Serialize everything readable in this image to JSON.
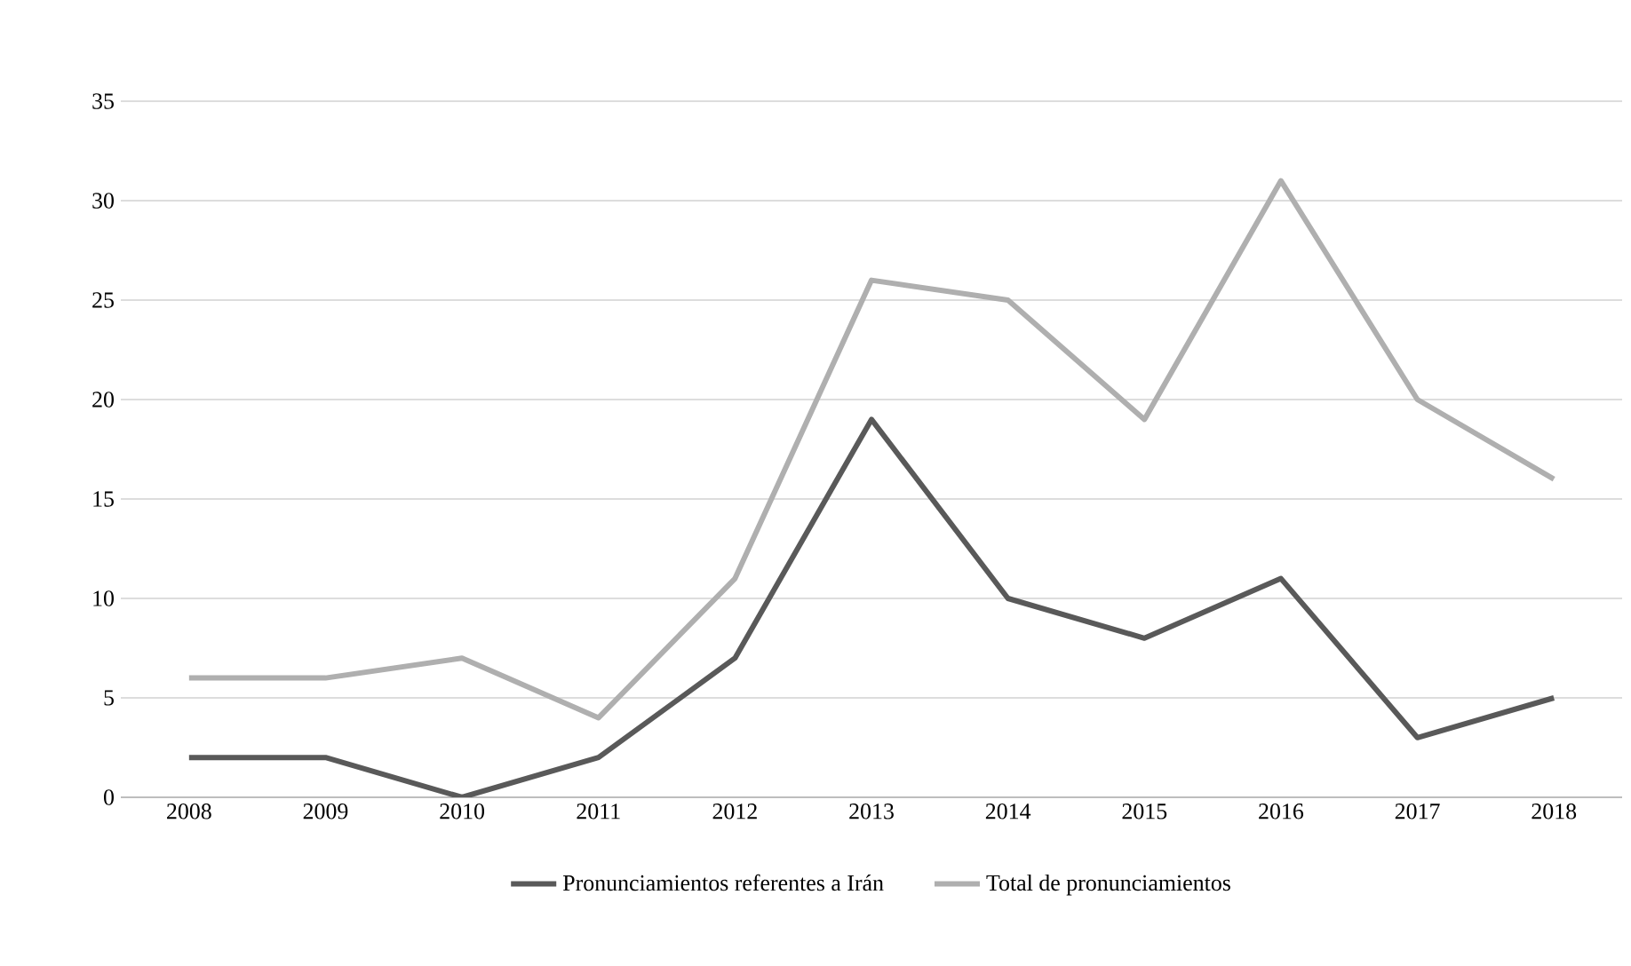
{
  "chart_data": {
    "type": "line",
    "categories": [
      "2008",
      "2009",
      "2010",
      "2011",
      "2012",
      "2013",
      "2014",
      "2015",
      "2016",
      "2017",
      "2018"
    ],
    "series": [
      {
        "name": "Pronunciamientos referentes a Irán",
        "color": "#595959",
        "values": [
          2,
          2,
          0,
          2,
          7,
          19,
          10,
          8,
          11,
          3,
          5
        ]
      },
      {
        "name": "Total de pronunciamientos",
        "color": "#afafaf",
        "values": [
          6,
          6,
          7,
          4,
          11,
          26,
          25,
          19,
          31,
          20,
          16
        ]
      }
    ],
    "ylim": [
      0,
      35
    ],
    "yticks": [
      0,
      5,
      10,
      15,
      20,
      25,
      30,
      35
    ],
    "grid": "y",
    "legend": "bottom",
    "marker": "none",
    "line_style": "solid"
  }
}
